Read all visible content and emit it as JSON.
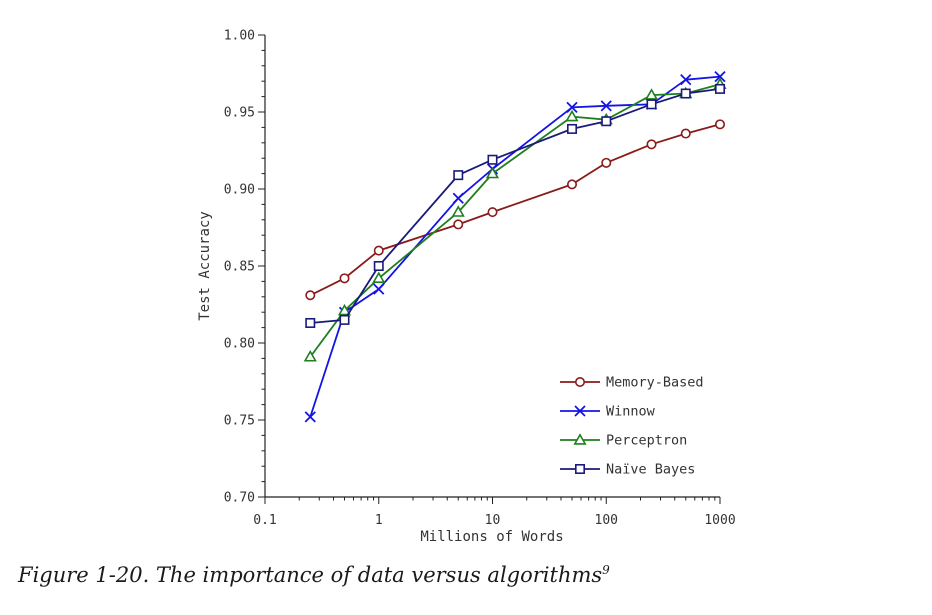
{
  "caption": {
    "text": "Figure 1-20. The importance of data versus algorithms",
    "footnote": "9"
  },
  "chart_data": {
    "type": "line",
    "xscale": "log",
    "xlabel": "Millions of Words",
    "ylabel": "Test Accuracy",
    "xlim": [
      0.1,
      1000
    ],
    "ylim": [
      0.7,
      1.0
    ],
    "xticks": [
      "0.1",
      "1",
      "10",
      "100",
      "1000"
    ],
    "yticks": [
      "0.70",
      "0.75",
      "0.80",
      "0.85",
      "0.90",
      "0.95",
      "1.00"
    ],
    "legend_position": "bottom-right",
    "series": [
      {
        "name": "Memory-Based",
        "color": "#8B1A1A",
        "marker": "circle",
        "x": [
          0.25,
          0.5,
          1,
          5,
          10,
          50,
          100,
          250,
          500,
          1000
        ],
        "y": [
          0.831,
          0.842,
          0.86,
          0.877,
          0.885,
          0.903,
          0.917,
          0.929,
          0.936,
          0.942
        ]
      },
      {
        "name": "Winnow",
        "color": "#1414E6",
        "marker": "x",
        "x": [
          0.25,
          0.5,
          1,
          5,
          10,
          50,
          100,
          250,
          500,
          1000
        ],
        "y": [
          0.752,
          0.82,
          0.835,
          0.894,
          0.913,
          0.953,
          0.954,
          0.955,
          0.971,
          0.973
        ]
      },
      {
        "name": "Perceptron",
        "color": "#1F7F1F",
        "marker": "triangle",
        "x": [
          0.25,
          0.5,
          1,
          5,
          10,
          50,
          100,
          250,
          500,
          1000
        ],
        "y": [
          0.791,
          0.821,
          0.842,
          0.885,
          0.91,
          0.947,
          0.945,
          0.961,
          0.962,
          0.968
        ]
      },
      {
        "name": "Naïve Bayes",
        "color": "#1A1A7A",
        "marker": "square",
        "x": [
          0.25,
          0.5,
          1,
          5,
          10,
          50,
          100,
          250,
          500,
          1000
        ],
        "y": [
          0.813,
          0.815,
          0.85,
          0.909,
          0.919,
          0.939,
          0.944,
          0.955,
          0.962,
          0.965
        ]
      }
    ]
  }
}
